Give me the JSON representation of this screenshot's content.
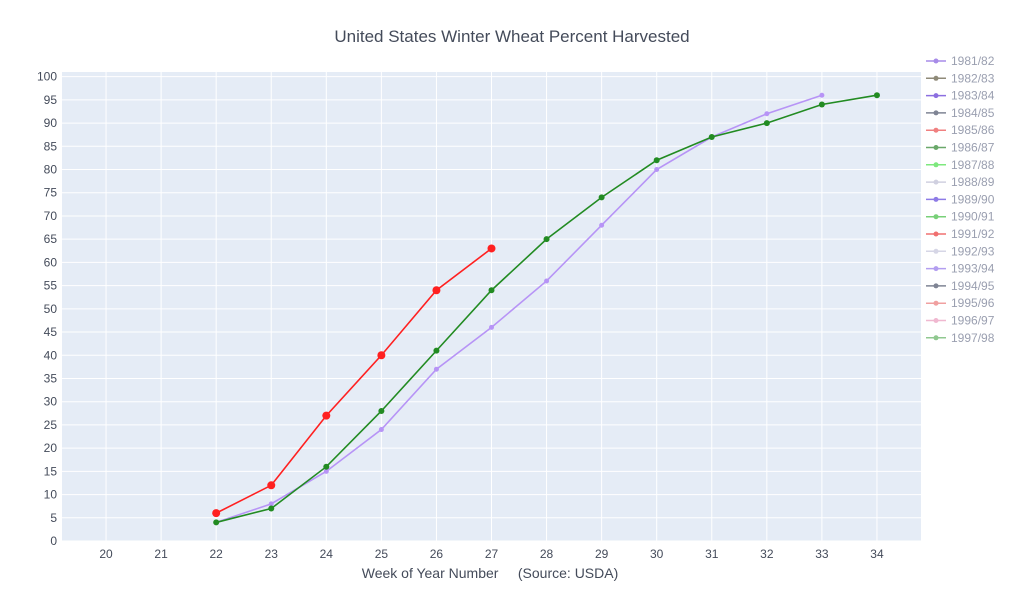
{
  "chart_data": {
    "type": "line",
    "title": "United States Winter Wheat Percent Harvested",
    "xlabel": "Week of Year Number     (Source: USDA)",
    "ylabel": "",
    "xlim": [
      19.2,
      34.8
    ],
    "ylim": [
      0,
      101
    ],
    "x_ticks": [
      20,
      21,
      22,
      23,
      24,
      25,
      26,
      27,
      28,
      29,
      30,
      31,
      32,
      33,
      34
    ],
    "y_ticks": [
      0,
      5,
      10,
      15,
      20,
      25,
      30,
      35,
      40,
      45,
      50,
      55,
      60,
      65,
      70,
      75,
      80,
      85,
      90,
      95,
      100
    ],
    "grid": true,
    "legend_position": "right",
    "legend": [
      {
        "name": "1981/82",
        "color": "#a78be8"
      },
      {
        "name": "1982/83",
        "color": "#8f8a78"
      },
      {
        "name": "1983/84",
        "color": "#8c6fe0"
      },
      {
        "name": "1984/85",
        "color": "#7f8494"
      },
      {
        "name": "1985/86",
        "color": "#f08080"
      },
      {
        "name": "1986/87",
        "color": "#6aa86a"
      },
      {
        "name": "1987/88",
        "color": "#7ee87e"
      },
      {
        "name": "1988/89",
        "color": "#d0d0e0"
      },
      {
        "name": "1989/90",
        "color": "#8e7be6"
      },
      {
        "name": "1990/91",
        "color": "#78d078"
      },
      {
        "name": "1991/92",
        "color": "#f07070"
      },
      {
        "name": "1992/93",
        "color": "#d6d6e6"
      },
      {
        "name": "1993/94",
        "color": "#b39ef0"
      },
      {
        "name": "1994/95",
        "color": "#7f8494"
      },
      {
        "name": "1995/96",
        "color": "#f0a0a0"
      },
      {
        "name": "1996/97",
        "color": "#f0b8d0"
      },
      {
        "name": "1997/98",
        "color": "#90c890"
      }
    ],
    "series": [
      {
        "color": "#b794f6",
        "marker_size": 2.5,
        "x": [
          22,
          23,
          24,
          25,
          26,
          27,
          28,
          29,
          30,
          31,
          32,
          33
        ],
        "values": [
          4,
          8,
          15,
          24,
          37,
          46,
          56,
          68,
          80,
          87,
          92,
          96
        ]
      },
      {
        "color": "#228b22",
        "marker_size": 3,
        "x": [
          22,
          23,
          24,
          25,
          26,
          27,
          28,
          29,
          30,
          31,
          32,
          33,
          34
        ],
        "values": [
          4,
          7,
          16,
          28,
          41,
          54,
          65,
          74,
          82,
          87,
          90,
          94,
          96
        ]
      },
      {
        "color": "#ff2020",
        "marker_size": 4,
        "x": [
          22,
          23,
          24,
          25,
          26,
          27
        ],
        "values": [
          6,
          12,
          27,
          40,
          54,
          63
        ]
      }
    ]
  }
}
